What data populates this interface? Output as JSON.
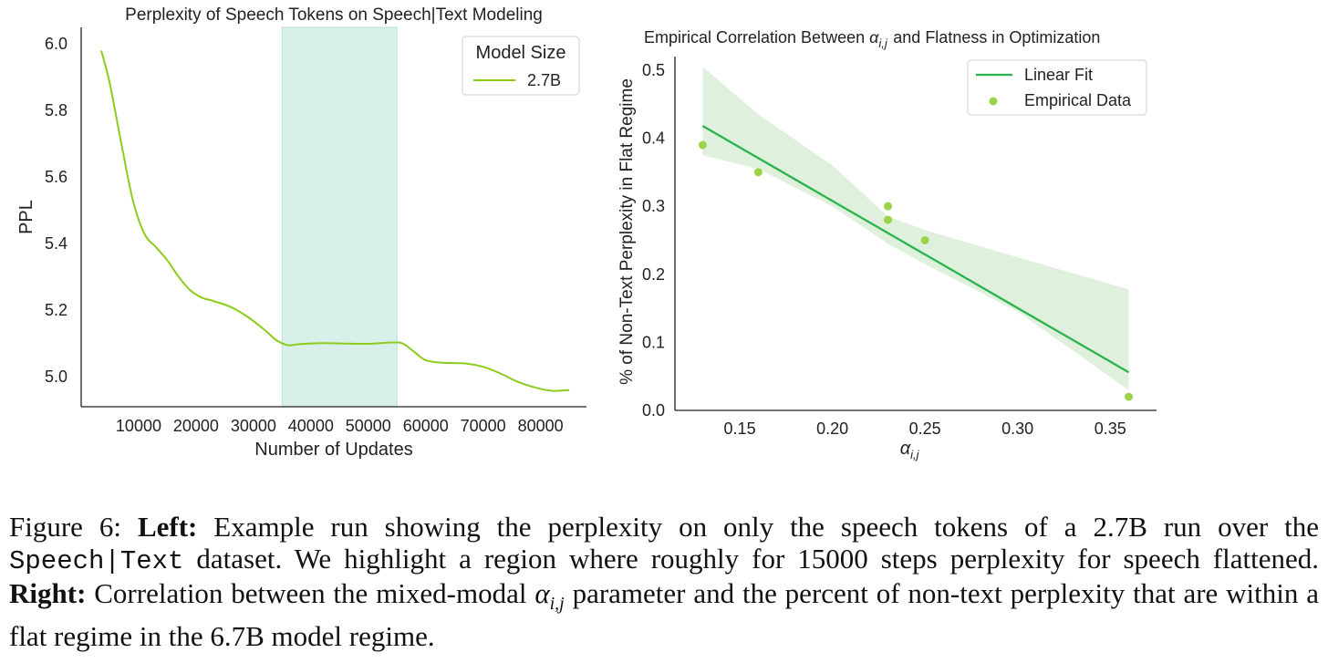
{
  "chart_data": [
    {
      "type": "line",
      "title": "Perplexity of Speech Tokens on Speech|Text Modeling",
      "xlabel": "Number of Updates",
      "ylabel": "PPL",
      "xlim": [
        0,
        88000
      ],
      "ylim": [
        4.91,
        6.05
      ],
      "xticks": [
        10000,
        20000,
        30000,
        40000,
        50000,
        60000,
        70000,
        80000
      ],
      "xtick_labels": [
        "10000",
        "20000",
        "30000",
        "40000",
        "50000",
        "60000",
        "70000",
        "80000"
      ],
      "yticks": [
        5.0,
        5.2,
        5.4,
        5.6,
        5.8,
        6.0
      ],
      "ytick_labels": [
        "5.0",
        "5.2",
        "5.4",
        "5.6",
        "5.8",
        "6.0"
      ],
      "highlight": {
        "x0": 35000,
        "x1": 55000,
        "color": "#d9f0ea"
      },
      "legend_title": "Model Size",
      "legend_position": "top-right",
      "series": [
        {
          "name": "2.7B",
          "color": "#8ccc1c",
          "x": [
            3500,
            5000,
            7000,
            9000,
            11000,
            13000,
            15000,
            17000,
            19000,
            21000,
            23000,
            26000,
            29000,
            32000,
            34000,
            36000,
            38000,
            42000,
            46000,
            50000,
            54000,
            56000,
            58000,
            60000,
            63000,
            67000,
            70000,
            73000,
            76000,
            79000,
            82000,
            85000
          ],
          "y": [
            5.98,
            5.88,
            5.7,
            5.53,
            5.43,
            5.39,
            5.35,
            5.3,
            5.26,
            5.238,
            5.228,
            5.21,
            5.18,
            5.14,
            5.11,
            5.095,
            5.098,
            5.101,
            5.1,
            5.099,
            5.103,
            5.1,
            5.075,
            5.05,
            5.042,
            5.04,
            5.03,
            5.01,
            4.985,
            4.968,
            4.958,
            4.96
          ]
        }
      ]
    },
    {
      "type": "scatter",
      "title": "Empirical Correlation Between α_{i,j} and Flatness in Optimization",
      "xlabel": "α_{i,j}",
      "ylabel": "% of Non-Text Perplexity in Flat Regime",
      "xlim": [
        0.115,
        0.375
      ],
      "ylim": [
        0.0,
        0.52
      ],
      "xticks": [
        0.15,
        0.2,
        0.25,
        0.3,
        0.35
      ],
      "xtick_labels": [
        "0.15",
        "0.20",
        "0.25",
        "0.30",
        "0.35"
      ],
      "yticks": [
        0.0,
        0.1,
        0.2,
        0.3,
        0.4,
        0.5
      ],
      "ytick_labels": [
        "0.0",
        "0.1",
        "0.2",
        "0.3",
        "0.4",
        "0.5"
      ],
      "legend_position": "top-right",
      "legend": [
        "Linear Fit",
        "Empirical Data"
      ],
      "fit": {
        "name": "Linear Fit",
        "color": "#2bb34e",
        "x": [
          0.13,
          0.36
        ],
        "y": [
          0.418,
          0.056
        ],
        "band_x": [
          0.13,
          0.16,
          0.2,
          0.23,
          0.25,
          0.3,
          0.36
        ],
        "band_upper": [
          0.505,
          0.435,
          0.36,
          0.285,
          0.265,
          0.225,
          0.178
        ],
        "band_lower": [
          0.375,
          0.355,
          0.3,
          0.245,
          0.215,
          0.145,
          0.03
        ],
        "band_color": "#dff1dc"
      },
      "points": {
        "name": "Empirical Data",
        "color": "#9bd44a",
        "x": [
          0.13,
          0.16,
          0.23,
          0.23,
          0.25,
          0.36
        ],
        "y": [
          0.39,
          0.35,
          0.3,
          0.28,
          0.25,
          0.02
        ]
      }
    }
  ],
  "caption": {
    "figure_label": "Figure 6:",
    "left_label": "Left:",
    "left_text_1": "Example run showing the perplexity on only the speech tokens of a 2.7B run over the",
    "dataset_name": "Speech|Text",
    "left_text_2": "dataset. We highlight a region where roughly for 15000 steps perplexity for speech flattened.",
    "right_label": "Right:",
    "right_text_1": "Correlation between the mixed-modal",
    "alpha_symbol": "α",
    "alpha_sub": "i,j",
    "right_text_2": "parameter and the percent of non-text perplexity that are within a flat regime in the 6.7B model regime."
  }
}
